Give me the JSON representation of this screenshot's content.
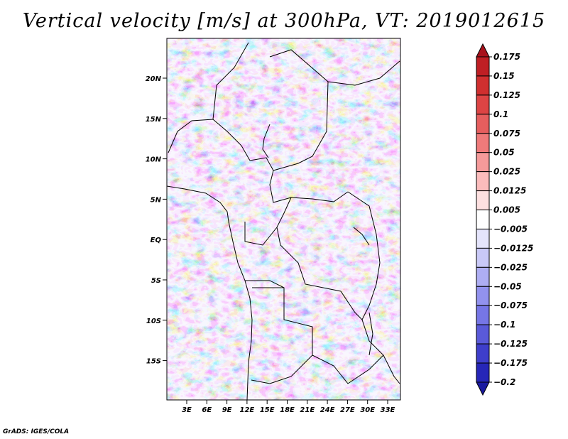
{
  "title": "Vertical velocity [m/s] at 300hPa, VT: 2019012615",
  "credit": "GrADS: IGES/COLA",
  "map": {
    "lat_labels": [
      "20N",
      "15N",
      "10N",
      "5N",
      "EQ",
      "5S",
      "10S",
      "15S"
    ],
    "lon_labels": [
      "3E",
      "6E",
      "9E",
      "12E",
      "15E",
      "18E",
      "21E",
      "24E",
      "27E",
      "30E",
      "33E"
    ]
  },
  "colorbar": {
    "labels": [
      "0.175",
      "0.15",
      "0.125",
      "0.1",
      "0.075",
      "0.05",
      "0.025",
      "0.0125",
      "0.005",
      "−0.005",
      "−0.0125",
      "−0.025",
      "−0.05",
      "−0.075",
      "−0.1",
      "−0.125",
      "−0.175",
      "−0.2"
    ],
    "colors": [
      "#a8121c",
      "#bf1f24",
      "#d02f2f",
      "#dd4444",
      "#e65e5e",
      "#ef7a7a",
      "#f59a9a",
      "#fbbcbc",
      "#fde0e0",
      "#ffffff",
      "#e4e4fb",
      "#c9c9f7",
      "#aeaef3",
      "#9292ee",
      "#7676e6",
      "#5a5ad9",
      "#3e3ecb",
      "#2626b8",
      "#1a1aa0"
    ]
  }
}
